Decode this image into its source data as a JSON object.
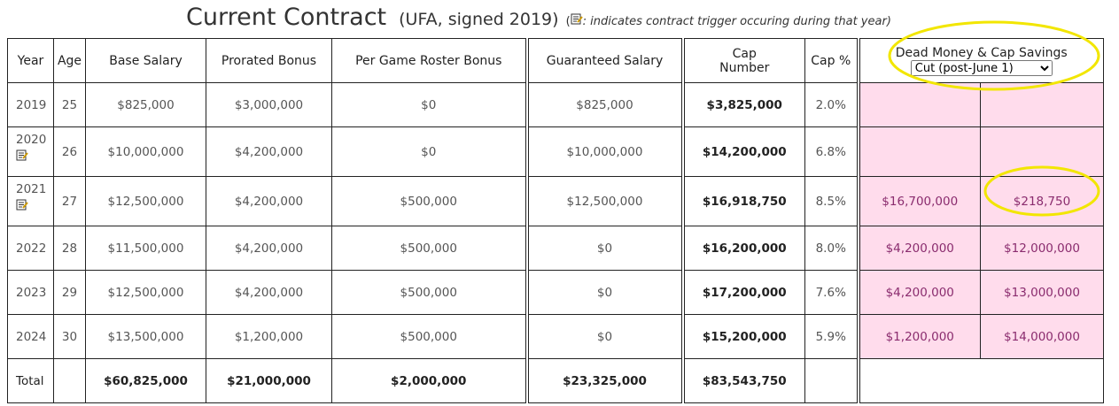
{
  "title": {
    "main": "Current Contract",
    "sub": "(UFA, signed 2019)",
    "note_open": "(",
    "note": ": indicates contract trigger occuring during that year)"
  },
  "table": {
    "headers": [
      "Year",
      "Age",
      "Base Salary",
      "Prorated Bonus",
      "Per Game Roster Bonus",
      "Guaranteed Salary",
      "Cap Number",
      "Cap %",
      "Dead Money & Cap Savings"
    ],
    "select": "Cut (post-June 1)",
    "rows": [
      {
        "trigger": false,
        "cells": [
          "2019",
          "25",
          "$825,000",
          "$3,000,000",
          "$0",
          "$825,000",
          "$3,825,000",
          "2.0%",
          null,
          null
        ]
      },
      {
        "trigger": true,
        "cells": [
          "2020",
          "26",
          "$10,000,000",
          "$4,200,000",
          "$0",
          "$10,000,000",
          "$14,200,000",
          "6.8%",
          null,
          null
        ]
      },
      {
        "trigger": true,
        "cells": [
          "2021",
          "27",
          "$12,500,000",
          "$4,200,000",
          "$500,000",
          "$12,500,000",
          "$16,918,750",
          "8.5%",
          "$16,700,000",
          "$218,750"
        ]
      },
      {
        "trigger": false,
        "cells": [
          "2022",
          "28",
          "$11,500,000",
          "$4,200,000",
          "$500,000",
          "$0",
          "$16,200,000",
          "8.0%",
          "$4,200,000",
          "$12,000,000"
        ]
      },
      {
        "trigger": false,
        "cells": [
          "2023",
          "29",
          "$12,500,000",
          "$4,200,000",
          "$500,000",
          "$0",
          "$17,200,000",
          "7.6%",
          "$4,200,000",
          "$13,000,000"
        ]
      },
      {
        "trigger": false,
        "cells": [
          "2024",
          "30",
          "$13,500,000",
          "$1,200,000",
          "$500,000",
          "$0",
          "$15,200,000",
          "5.9%",
          "$1,200,000",
          "$14,000,000"
        ]
      }
    ],
    "total": [
      "Total",
      null,
      "$60,825,000",
      "$21,000,000",
      "$2,000,000",
      "$23,325,000",
      "$83,543,750",
      null
    ]
  }
}
